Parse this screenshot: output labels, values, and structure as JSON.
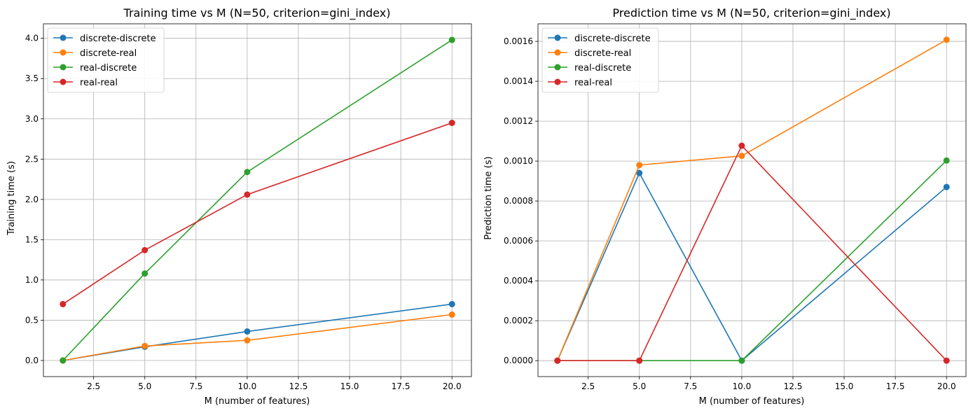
{
  "chart_data": [
    {
      "type": "line",
      "title": "Training time vs M (N=50, criterion=gini_index)",
      "xlabel": "M (number of features)",
      "ylabel": "Training time (s)",
      "x": [
        1,
        5,
        10,
        20
      ],
      "xlim": [
        0.05,
        20.95
      ],
      "ylim": [
        -0.2,
        4.18
      ],
      "xticks": [
        2.5,
        5.0,
        7.5,
        10.0,
        12.5,
        15.0,
        17.5,
        20.0
      ],
      "xtick_labels": [
        "2.5",
        "5.0",
        "7.5",
        "10.0",
        "12.5",
        "15.0",
        "17.5",
        "20.0"
      ],
      "yticks": [
        0.0,
        0.5,
        1.0,
        1.5,
        2.0,
        2.5,
        3.0,
        3.5,
        4.0
      ],
      "ytick_labels": [
        "0.0",
        "0.5",
        "1.0",
        "1.5",
        "2.0",
        "2.5",
        "3.0",
        "3.5",
        "4.0"
      ],
      "grid": true,
      "legend_position": "top-left",
      "series": [
        {
          "name": "discrete-discrete",
          "color": "#1f77b4",
          "values": [
            0.0,
            0.17,
            0.36,
            0.7
          ]
        },
        {
          "name": "discrete-real",
          "color": "#ff7f0e",
          "values": [
            0.0,
            0.18,
            0.25,
            0.57
          ]
        },
        {
          "name": "real-discrete",
          "color": "#2ca02c",
          "values": [
            0.0,
            1.08,
            2.34,
            3.98
          ]
        },
        {
          "name": "real-real",
          "color": "#d62728",
          "values": [
            0.7,
            1.37,
            2.06,
            2.95
          ]
        }
      ]
    },
    {
      "type": "line",
      "title": "Prediction time vs M (N=50, criterion=gini_index)",
      "xlabel": "M (number of features)",
      "ylabel": "Prediction time (s)",
      "x": [
        1,
        5,
        10,
        20
      ],
      "xlim": [
        0.05,
        20.95
      ],
      "ylim": [
        -8e-05,
        0.001688
      ],
      "xticks": [
        2.5,
        5.0,
        7.5,
        10.0,
        12.5,
        15.0,
        17.5,
        20.0
      ],
      "xtick_labels": [
        "2.5",
        "5.0",
        "7.5",
        "10.0",
        "12.5",
        "15.0",
        "17.5",
        "20.0"
      ],
      "yticks": [
        0.0,
        0.0002,
        0.0004,
        0.0006,
        0.0008,
        0.001,
        0.0012,
        0.0014,
        0.0016
      ],
      "ytick_labels": [
        "0.0000",
        "0.0002",
        "0.0004",
        "0.0006",
        "0.0008",
        "0.0010",
        "0.0012",
        "0.0014",
        "0.0016"
      ],
      "grid": true,
      "legend_position": "top-left",
      "series": [
        {
          "name": "discrete-discrete",
          "color": "#1f77b4",
          "values": [
            0.0,
            0.00094,
            0.0,
            0.00087
          ]
        },
        {
          "name": "discrete-real",
          "color": "#ff7f0e",
          "values": [
            0.0,
            0.00098,
            0.001026,
            0.001608
          ]
        },
        {
          "name": "real-discrete",
          "color": "#2ca02c",
          "values": [
            0.0,
            0.0,
            0.0,
            0.001003
          ]
        },
        {
          "name": "real-real",
          "color": "#d62728",
          "values": [
            0.0,
            0.0,
            0.001077,
            0.0
          ]
        }
      ]
    }
  ]
}
